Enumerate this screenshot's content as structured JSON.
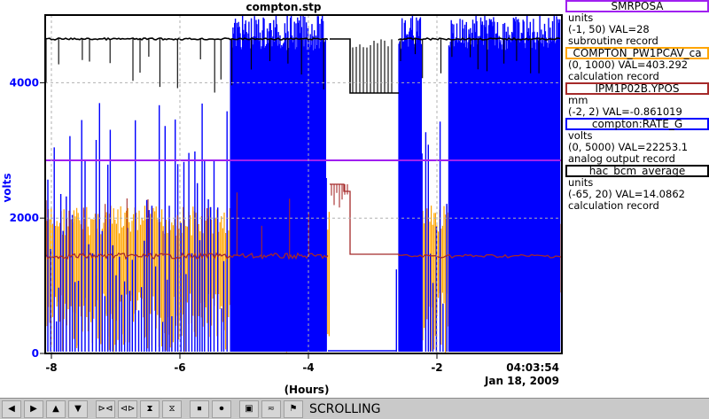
{
  "window": {
    "title": "compton.stp"
  },
  "axes": {
    "y_label": "volts",
    "y_ticks": [
      "0",
      "2000",
      "4000"
    ],
    "x_ticks": [
      "-8",
      "-6",
      "-4",
      "-2"
    ],
    "x_label": "(Hours)",
    "end_time": "04:03:54",
    "end_date": "Jan 18, 2009"
  },
  "legend": [
    {
      "name": "SMRPOSA",
      "units": "units",
      "range": "(-1, 50) VAL=28",
      "type": "subroutine record",
      "color": "#a020f0"
    },
    {
      "name": "COMPTON_PW1PCAV_ca",
      "units": "",
      "range": "(0, 1000) VAL=403.292",
      "type": "calculation record",
      "color": "#ffa500"
    },
    {
      "name": "IPM1P02B.YPOS",
      "units": "mm",
      "range": "(-2, 2) VAL=-0.861019",
      "type": "",
      "color": "#a52a2a"
    },
    {
      "name": "compton:RATE_G",
      "units": "volts",
      "range": "(0, 5000) VAL=22253.1",
      "type": "analog output record",
      "color": "#0000ff"
    },
    {
      "name": "hac_bcm_average",
      "units": "units",
      "range": "(-65, 20) VAL=14.0862",
      "type": "calculation record",
      "color": "#000000"
    }
  ],
  "toolbar": {
    "status": "SCROLLING",
    "buttons": [
      "left-arrow-icon",
      "right-arrow-icon",
      "up-arrow-icon",
      "down-arrow-icon",
      "zoom-in-horizontal-icon",
      "zoom-out-horizontal-icon",
      "zoom-in-vertical-icon",
      "zoom-out-vertical-icon",
      "stop-icon",
      "record-icon",
      "camera-icon",
      "autoscale-icon",
      "flag-icon"
    ]
  },
  "colors": {
    "axis": "#000000",
    "yaxis": "#0000ff",
    "grid": "#b0b0b0"
  }
}
